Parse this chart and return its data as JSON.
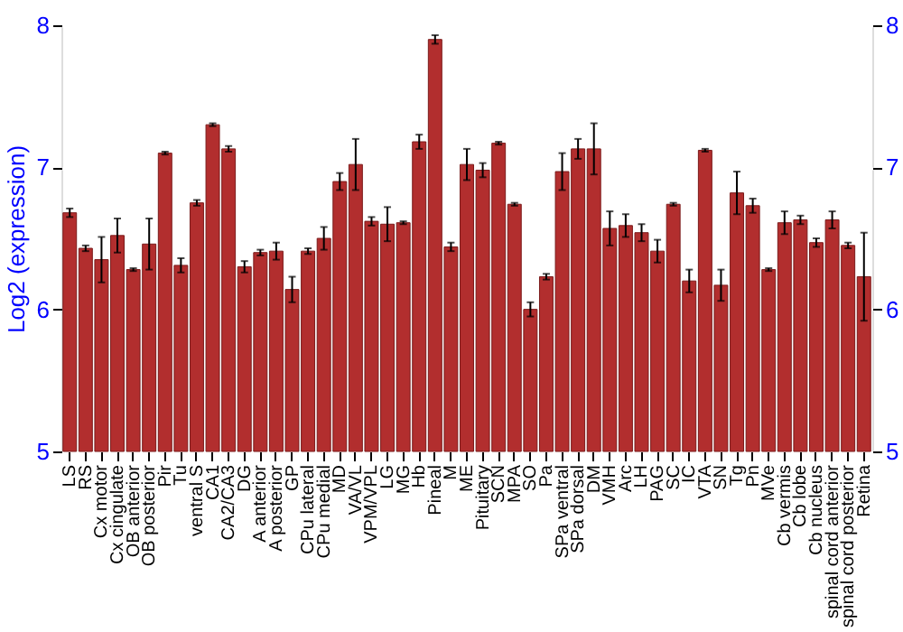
{
  "chart_data": {
    "type": "bar",
    "ylabel": "Log2 (expression)",
    "categories": [
      "LS",
      "RS",
      "Cx motor",
      "Cx cingulate",
      "OB anterior",
      "OB posterior",
      "Pir",
      "Tu",
      "ventral S",
      "CA1",
      "CA2/CA3",
      "DG",
      "A anterior",
      "A posterior",
      "GP",
      "CPu lateral",
      "CPu medial",
      "MD",
      "VA/VL",
      "VPM/VPL",
      "LG",
      "MG",
      "Hb",
      "Pineal",
      "M",
      "ME",
      "Pituitary",
      "SCN",
      "MPA",
      "SO",
      "Pa",
      "SPa ventral",
      "SPa dorsal",
      "DM",
      "VMH",
      "Arc",
      "LH",
      "PAG",
      "SC",
      "IC",
      "VTA",
      "SN",
      "Tg",
      "Pn",
      "MVe",
      "Cb vermis",
      "Cb lobe",
      "Cb nucleus",
      "spinal cord anterior",
      "spinal cord posterior",
      "Retina"
    ],
    "values": [
      6.68,
      6.43,
      6.35,
      6.52,
      6.28,
      6.46,
      7.1,
      6.31,
      6.75,
      7.3,
      7.13,
      6.3,
      6.4,
      6.41,
      6.14,
      6.41,
      6.5,
      6.9,
      7.02,
      6.62,
      6.6,
      6.61,
      7.18,
      7.9,
      6.44,
      7.02,
      6.98,
      7.17,
      6.74,
      6.0,
      6.23,
      6.97,
      7.13,
      7.13,
      6.57,
      6.59,
      6.54,
      6.41,
      6.74,
      6.2,
      7.12,
      6.17,
      6.82,
      6.73,
      6.28,
      6.61,
      6.63,
      6.47,
      6.63,
      6.45,
      6.23
    ],
    "errors": [
      0.03,
      0.02,
      0.16,
      0.12,
      0.01,
      0.18,
      0.01,
      0.05,
      0.02,
      0.01,
      0.02,
      0.04,
      0.02,
      0.06,
      0.09,
      0.02,
      0.08,
      0.06,
      0.18,
      0.03,
      0.12,
      0.01,
      0.05,
      0.03,
      0.03,
      0.11,
      0.05,
      0.01,
      0.01,
      0.05,
      0.02,
      0.13,
      0.07,
      0.18,
      0.12,
      0.08,
      0.06,
      0.08,
      0.01,
      0.08,
      0.01,
      0.11,
      0.15,
      0.05,
      0.01,
      0.08,
      0.03,
      0.03,
      0.06,
      0.02,
      0.31
    ],
    "color": "#b22e2e",
    "ylim": [
      5,
      8
    ],
    "yticks": [
      5,
      6,
      7,
      8
    ],
    "y2lim": [
      5,
      8
    ],
    "y2ticks": [
      5,
      6,
      7,
      8
    ],
    "grid": "y"
  }
}
